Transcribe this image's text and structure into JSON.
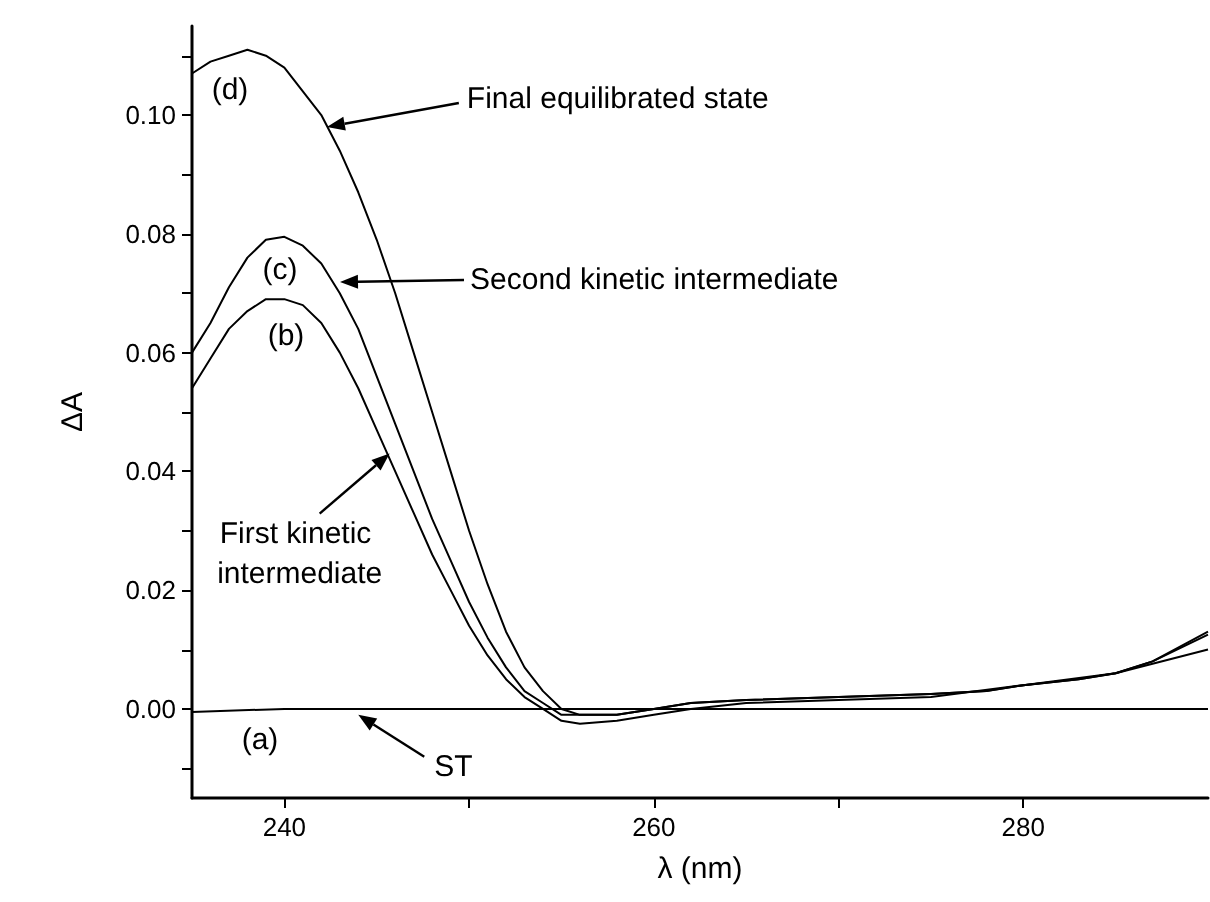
{
  "chart_data": {
    "type": "line",
    "xlabel": "λ (nm)",
    "ylabel": "ΔA",
    "xlim": [
      235,
      290
    ],
    "xticks": [
      240,
      {
        "value": 250,
        "label": null
      },
      260,
      {
        "value": 270,
        "label": null
      },
      280
    ],
    "ylim": [
      -0.015,
      0.115
    ],
    "yticks": [
      {
        "value": -0.01,
        "label": null
      },
      {
        "value": 0,
        "label": "0.00"
      },
      {
        "value": 0.01,
        "label": null
      },
      {
        "value": 0.02,
        "label": "0.02"
      },
      {
        "value": 0.03,
        "label": null
      },
      {
        "value": 0.04,
        "label": "0.04"
      },
      {
        "value": 0.05,
        "label": null
      },
      {
        "value": 0.06,
        "label": "0.06"
      },
      {
        "value": 0.07,
        "label": null
      },
      {
        "value": 0.08,
        "label": "0.08"
      },
      {
        "value": 0.09,
        "label": null
      },
      {
        "value": 0.1,
        "label": "0.10"
      },
      {
        "value": 0.11,
        "label": null
      }
    ],
    "grid": false,
    "marker": "none",
    "line_style": "solid",
    "series": [
      {
        "color": "#000000",
        "x": [
          235,
          236,
          237,
          238,
          239,
          240,
          241,
          242,
          243,
          244,
          245,
          246,
          247,
          248,
          249,
          250,
          251,
          252,
          253,
          254,
          255,
          256,
          258,
          260,
          262,
          265,
          270,
          275,
          278,
          280,
          283,
          285,
          287,
          290
        ],
        "values": [
          0.107,
          0.109,
          0.11,
          0.111,
          0.11,
          0.108,
          0.104,
          0.1,
          0.094,
          0.087,
          0.079,
          0.07,
          0.06,
          0.05,
          0.04,
          0.03,
          0.021,
          0.013,
          0.007,
          0.003,
          0.0,
          -0.001,
          -0.001,
          0.0,
          0.001,
          0.0015,
          0.002,
          0.0025,
          0.003,
          0.004,
          0.005,
          0.006,
          0.008,
          0.013
        ]
      },
      {
        "color": "#000000",
        "x": [
          235,
          236,
          237,
          238,
          239,
          240,
          241,
          242,
          243,
          244,
          245,
          246,
          247,
          248,
          249,
          250,
          251,
          252,
          253,
          254,
          255,
          256,
          258,
          260,
          262,
          265,
          270,
          275,
          278,
          280,
          283,
          285,
          287,
          290
        ],
        "values": [
          0.06,
          0.065,
          0.071,
          0.076,
          0.079,
          0.0795,
          0.078,
          0.075,
          0.07,
          0.064,
          0.056,
          0.048,
          0.04,
          0.032,
          0.025,
          0.018,
          0.012,
          0.007,
          0.003,
          0.001,
          -0.001,
          -0.001,
          -0.001,
          0.0,
          0.001,
          0.0015,
          0.002,
          0.0025,
          0.003,
          0.004,
          0.005,
          0.006,
          0.008,
          0.0125
        ]
      },
      {
        "color": "#000000",
        "x": [
          235,
          236,
          237,
          238,
          239,
          240,
          241,
          242,
          243,
          244,
          245,
          246,
          247,
          248,
          249,
          250,
          251,
          252,
          253,
          254,
          255,
          256,
          258,
          260,
          262,
          265,
          270,
          275,
          280,
          285,
          290
        ],
        "values": [
          0.054,
          0.059,
          0.064,
          0.067,
          0.069,
          0.069,
          0.068,
          0.065,
          0.06,
          0.054,
          0.047,
          0.04,
          0.033,
          0.026,
          0.02,
          0.014,
          0.009,
          0.005,
          0.002,
          0.0,
          -0.002,
          -0.0025,
          -0.002,
          -0.001,
          0.0,
          0.001,
          0.0015,
          0.002,
          0.004,
          0.006,
          0.01
        ]
      },
      {
        "color": "#000000",
        "x": [
          235,
          240,
          245,
          250,
          260,
          270,
          280,
          290
        ],
        "values": [
          -0.0005,
          0,
          0,
          0,
          0,
          0,
          0,
          0
        ]
      }
    ],
    "annotations": [
      "(d)",
      "(c)",
      "(b)",
      "(a)",
      {
        "text": "Final equilibrated state",
        "x": 242.3,
        "y": 0.098
      },
      "Second kinetic intermediate",
      {
        "text": "First kinetic intermediate",
        "x": 245.7,
        "y": 0.043
      },
      {
        "text": "ST",
        "x": 244.0,
        "y": -0.001
      }
    ]
  }
}
